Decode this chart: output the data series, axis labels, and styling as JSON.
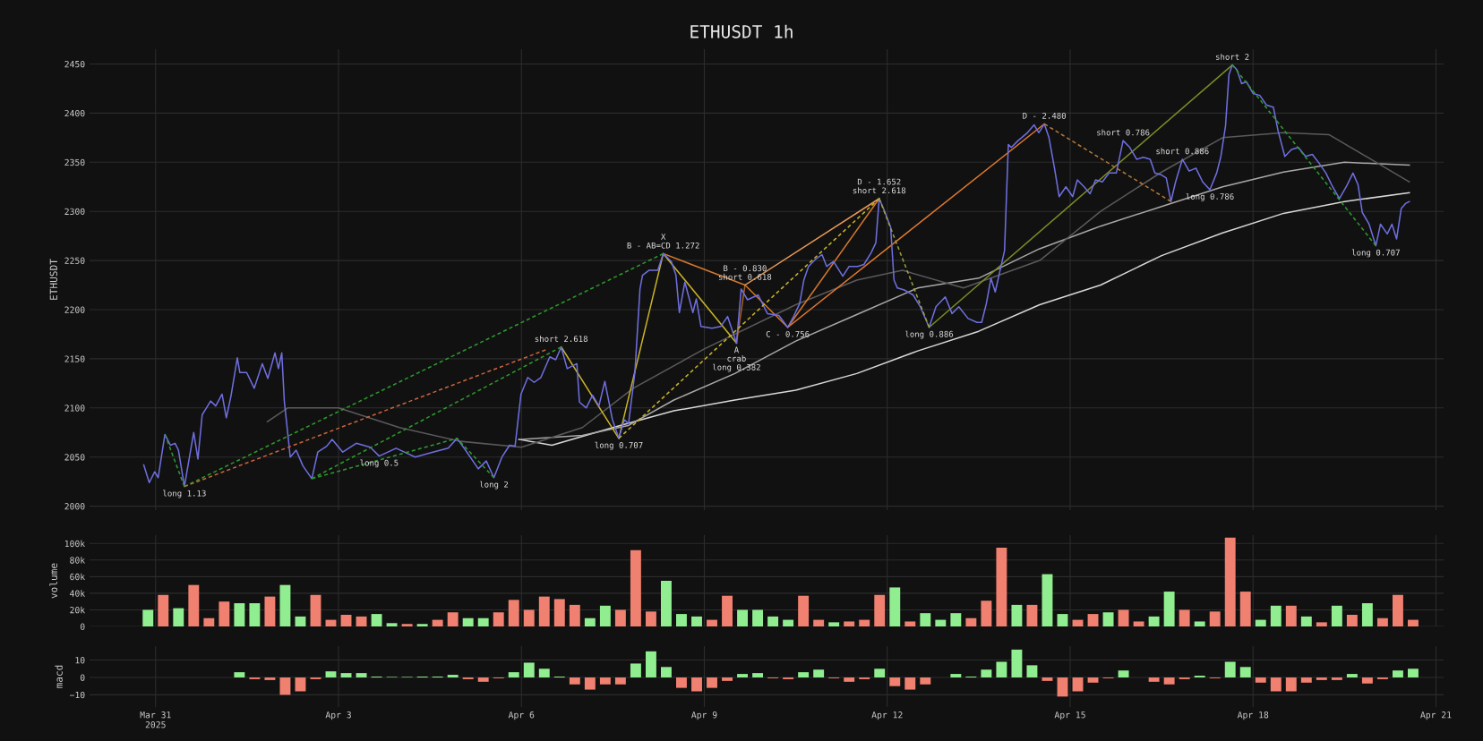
{
  "chart_data": [
    {
      "type": "line",
      "title": "ETHUSDT 1h",
      "ylabel": "ETHUSDT",
      "grid": true,
      "tick_labels": "y",
      "xlim": [
        "2025-03-29T22:00",
        "2025-04-21T03:00"
      ],
      "ylim": [
        1996,
        2465
      ],
      "yticks": [
        2000,
        2050,
        2100,
        2150,
        2200,
        2250,
        2300,
        2350,
        2400,
        2450
      ],
      "xticks": [
        {
          "value": "2025-03-31",
          "label": null
        },
        {
          "value": "2025-04-03",
          "label": null
        },
        {
          "value": "2025-04-06",
          "label": null
        },
        {
          "value": "2025-04-09",
          "label": null
        },
        {
          "value": "2025-04-12",
          "label": null
        },
        {
          "value": "2025-04-15",
          "label": null
        },
        {
          "value": "2025-04-18",
          "label": null
        },
        {
          "value": "2025-04-21",
          "label": null
        }
      ],
      "series": [
        {
          "type": "line",
          "color": "#d8d8d8",
          "line_style": "solid",
          "x": [
            "2025-04-05T23:00",
            "2025-04-06T12:00",
            "2025-04-07T12:00",
            "2025-04-08T12:00",
            "2025-04-09T12:00",
            "2025-04-10T12:00",
            "2025-04-11T12:00",
            "2025-04-12T12:00",
            "2025-04-13T12:00",
            "2025-04-14T12:00",
            "2025-04-15T12:00",
            "2025-04-16T12:00",
            "2025-04-17T12:00",
            "2025-04-18T12:00",
            "2025-04-19T12:00",
            "2025-04-20T13:30"
          ],
          "values": [
            2068,
            2062,
            2080,
            2097,
            2108,
            2118,
            2135,
            2158,
            2178,
            2205,
            2225,
            2255,
            2278,
            2298,
            2310,
            2319
          ]
        },
        {
          "type": "line",
          "color": "#a8a8a8",
          "line_style": "solid",
          "x": [
            "2025-04-06T00:00",
            "2025-04-07T00:00",
            "2025-04-07T18:00",
            "2025-04-08T12:00",
            "2025-04-09T12:00",
            "2025-04-10T12:00",
            "2025-04-11T12:00",
            "2025-04-12T12:00",
            "2025-04-13T12:00",
            "2025-04-14T12:00",
            "2025-04-15T12:00",
            "2025-04-16T12:00",
            "2025-04-17T12:00",
            "2025-04-18T12:00",
            "2025-04-19T12:00",
            "2025-04-20T13:30"
          ],
          "values": [
            2068,
            2072,
            2082,
            2108,
            2135,
            2168,
            2195,
            2222,
            2232,
            2262,
            2285,
            2305,
            2325,
            2340,
            2350,
            2347
          ]
        },
        {
          "type": "line",
          "color": "#5a5a5a",
          "line_style": "solid",
          "x": [
            "2025-04-01T20:00",
            "2025-04-02T04:00",
            "2025-04-03T00:00",
            "2025-04-04T00:00",
            "2025-04-05T00:00",
            "2025-04-06T00:00",
            "2025-04-07T00:00",
            "2025-04-07T20:00",
            "2025-04-09T00:00",
            "2025-04-10T12:00",
            "2025-04-11T12:00",
            "2025-04-12T06:00",
            "2025-04-13T06:00",
            "2025-04-14T12:00",
            "2025-04-15T12:00",
            "2025-04-16T12:00",
            "2025-04-17T12:00",
            "2025-04-18T12:00",
            "2025-04-19T06:00",
            "2025-04-20T13:30"
          ],
          "values": [
            2086,
            2100,
            2100,
            2080,
            2066,
            2060,
            2080,
            2120,
            2160,
            2205,
            2230,
            2240,
            2222,
            2250,
            2300,
            2340,
            2375,
            2380,
            2378,
            2330
          ]
        },
        {
          "type": "line",
          "color": "#2e9a2e",
          "line_style": "dashed",
          "x": [
            "2025-03-31T11:20",
            "2025-04-08T07:50"
          ],
          "values": [
            2020,
            2257
          ]
        },
        {
          "type": "line",
          "color": "#c8643c",
          "line_style": "dashed",
          "x": [
            "2025-03-31T11:20",
            "2025-04-06T09:30"
          ],
          "values": [
            2020,
            2159
          ]
        },
        {
          "type": "line",
          "color": "#2e9a2e",
          "line_style": "dashed",
          "x": [
            "2025-04-02T13:30",
            "2025-04-06T15:40"
          ],
          "values": [
            2028,
            2162
          ]
        },
        {
          "type": "line",
          "color": "#2e9a2e",
          "line_style": "dashed",
          "x": [
            "2025-03-31T03:40",
            "2025-03-31T11:20"
          ],
          "values": [
            2073,
            2020
          ]
        },
        {
          "type": "line",
          "color": "#2e9a2e",
          "line_style": "dashed",
          "x": [
            "2025-04-02T13:30",
            "2025-04-04T22:40",
            "2025-04-05T13:10"
          ],
          "values": [
            2028,
            2069,
            2029
          ]
        },
        {
          "type": "line",
          "color": "#c8b428",
          "line_style": "solid",
          "x": [
            "2025-04-06T15:40",
            "2025-04-07T14:20",
            "2025-04-08T07:50",
            "2025-04-09T12:40"
          ],
          "values": [
            2162,
            2069,
            2257,
            2166
          ]
        },
        {
          "type": "line",
          "color": "#d2782d",
          "line_style": "solid",
          "x": [
            "2025-04-08T07:50",
            "2025-04-09T16:00",
            "2025-04-10T08:50",
            "2025-04-11T20:50"
          ],
          "values": [
            2257,
            2225,
            2182,
            2313
          ]
        },
        {
          "type": "line",
          "color": "#a86020",
          "line_style": "solid",
          "x": [
            "2025-04-09T12:40",
            "2025-04-09T16:00"
          ],
          "values": [
            2166,
            2225
          ]
        },
        {
          "type": "line",
          "color": "#e89a58",
          "line_style": "solid",
          "x": [
            "2025-04-09T16:00",
            "2025-04-11T20:50"
          ],
          "values": [
            2225,
            2313
          ]
        },
        {
          "type": "line",
          "color": "#c8b428",
          "line_style": "dashed",
          "x": [
            "2025-04-07T14:20",
            "2025-04-11T20:50"
          ],
          "values": [
            2069,
            2313
          ]
        },
        {
          "type": "line",
          "color": "#e07a30",
          "line_style": "solid",
          "x": [
            "2025-04-10T08:50",
            "2025-04-14T13:50"
          ],
          "values": [
            2182,
            2389
          ]
        },
        {
          "type": "line",
          "color": "#9aa03c",
          "line_style": "dashed",
          "x": [
            "2025-04-11T20:50",
            "2025-04-12T16:30"
          ],
          "values": [
            2313,
            2182
          ]
        },
        {
          "type": "line",
          "color": "#7a8c28",
          "line_style": "solid",
          "x": [
            "2025-04-12T16:30",
            "2025-04-17T15:50"
          ],
          "values": [
            2182,
            2449
          ]
        },
        {
          "type": "line",
          "color": "#b4783c",
          "line_style": "dashed",
          "x": [
            "2025-04-14T13:50",
            "2025-04-16T15:40"
          ],
          "values": [
            2389,
            2310
          ]
        },
        {
          "type": "line",
          "color": "#2e9a2e",
          "line_style": "dashed",
          "x": [
            "2025-04-17T15:50",
            "2025-04-20T00:20"
          ],
          "values": [
            2449,
            2265
          ]
        },
        {
          "type": "line",
          "color": "#6f6fe0",
          "line_style": "solid",
          "x": [
            "2025-03-30T19:20",
            "2025-03-30T21:30",
            "2025-03-30T23:40",
            "2025-03-31T01:00",
            "2025-03-31T03:40",
            "2025-03-31T05:50",
            "2025-03-31T07:40",
            "2025-03-31T09:00",
            "2025-03-31T11:20",
            "2025-03-31T13:20",
            "2025-03-31T15:00",
            "2025-03-31T16:40",
            "2025-03-31T18:20",
            "2025-03-31T20:00",
            "2025-03-31T21:40",
            "2025-03-31T23:40",
            "2025-04-01T02:10",
            "2025-04-01T03:50",
            "2025-04-01T05:40",
            "2025-04-01T08:10",
            "2025-04-01T09:10",
            "2025-04-01T11:50",
            "2025-04-01T14:50",
            "2025-04-01T18:00",
            "2025-04-01T20:10",
            "2025-04-01T23:00",
            "2025-04-02T00:20",
            "2025-04-02T01:40",
            "2025-04-02T02:40",
            "2025-04-02T05:00",
            "2025-04-02T07:20",
            "2025-04-02T10:00",
            "2025-04-02T13:30",
            "2025-04-02T15:50",
            "2025-04-02T19:20",
            "2025-04-02T21:30",
            "2025-04-03T01:40",
            "2025-04-03T07:00",
            "2025-04-03T12:30",
            "2025-04-03T16:00",
            "2025-04-03T22:40",
            "2025-04-04T06:10",
            "2025-04-04T13:10",
            "2025-04-04T19:10",
            "2025-04-04T22:40",
            "2025-04-05T02:00",
            "2025-04-05T07:00",
            "2025-04-05T10:10",
            "2025-04-05T13:10",
            "2025-04-05T16:20",
            "2025-04-05T19:20",
            "2025-04-05T21:30",
            "2025-04-05T23:50",
            "2025-04-06T02:30",
            "2025-04-06T05:00",
            "2025-04-06T07:40",
            "2025-04-06T11:10",
            "2025-04-06T13:30",
            "2025-04-06T15:40",
            "2025-04-06T18:00",
            "2025-04-06T21:50",
            "2025-04-06T22:50",
            "2025-04-07T01:30",
            "2025-04-07T04:00",
            "2025-04-07T06:30",
            "2025-04-07T08:50",
            "2025-04-07T11:50",
            "2025-04-07T14:20",
            "2025-04-07T16:30",
            "2025-04-07T18:10",
            "2025-04-07T20:40",
            "2025-04-07T22:40",
            "2025-04-07T23:40",
            "2025-04-08T02:10",
            "2025-04-08T05:40",
            "2025-04-08T07:50",
            "2025-04-08T11:00",
            "2025-04-08T12:50",
            "2025-04-08T14:10",
            "2025-04-08T16:20",
            "2025-04-08T19:30",
            "2025-04-08T20:50",
            "2025-04-08T22:40",
            "2025-04-09T03:00",
            "2025-04-09T06:30",
            "2025-04-09T09:10",
            "2025-04-09T12:40",
            "2025-04-09T14:30",
            "2025-04-09T17:00",
            "2025-04-09T21:10",
            "2025-04-10T00:50",
            "2025-04-10T05:20",
            "2025-04-10T08:50",
            "2025-04-10T11:20",
            "2025-04-10T13:30",
            "2025-04-10T15:10",
            "2025-04-10T17:00",
            "2025-04-10T19:40",
            "2025-04-10T22:20",
            "2025-04-11T00:10",
            "2025-04-11T02:50",
            "2025-04-11T06:30",
            "2025-04-11T09:00",
            "2025-04-11T12:20",
            "2025-04-11T14:50",
            "2025-04-11T17:40",
            "2025-04-11T19:30",
            "2025-04-11T20:50",
            "2025-04-11T22:30",
            "2025-04-12T01:20",
            "2025-04-12T02:40",
            "2025-04-12T04:00",
            "2025-04-12T06:40",
            "2025-04-12T10:10",
            "2025-04-12T13:00",
            "2025-04-12T16:30",
            "2025-04-12T19:10",
            "2025-04-12T22:50",
            "2025-04-13T01:30",
            "2025-04-13T04:10",
            "2025-04-13T07:50",
            "2025-04-13T11:20",
            "2025-04-13T13:10",
            "2025-04-13T15:00",
            "2025-04-13T16:50",
            "2025-04-13T18:30",
            "2025-04-13T20:20",
            "2025-04-13T22:10",
            "2025-04-13T23:40",
            "2025-04-14T00:50",
            "2025-04-14T03:30",
            "2025-04-14T07:10",
            "2025-04-14T09:50",
            "2025-04-14T11:40",
            "2025-04-14T13:50",
            "2025-04-14T15:40",
            "2025-04-14T17:50",
            "2025-04-14T19:40",
            "2025-04-14T22:20",
            "2025-04-15T01:00",
            "2025-04-15T02:50",
            "2025-04-15T05:30",
            "2025-04-15T07:50",
            "2025-04-15T10:00",
            "2025-04-15T12:40",
            "2025-04-15T15:20",
            "2025-04-15T18:10",
            "2025-04-15T20:50",
            "2025-04-15T23:30",
            "2025-04-16T02:10",
            "2025-04-16T04:50",
            "2025-04-16T07:30",
            "2025-04-16T09:20",
            "2025-04-16T12:00",
            "2025-04-16T13:50",
            "2025-04-16T15:40",
            "2025-04-16T17:30",
            "2025-04-16T20:10",
            "2025-04-16T22:50",
            "2025-04-17T01:30",
            "2025-04-17T04:10",
            "2025-04-17T07:00",
            "2025-04-17T09:40",
            "2025-04-17T11:20",
            "2025-04-17T13:10",
            "2025-04-17T14:30",
            "2025-04-17T15:50",
            "2025-04-17T17:40",
            "2025-04-17T19:30",
            "2025-04-17T21:20",
            "2025-04-18T00:00",
            "2025-04-18T02:40",
            "2025-04-18T05:20",
            "2025-04-18T08:00",
            "2025-04-18T09:50",
            "2025-04-18T12:30",
            "2025-04-18T15:10",
            "2025-04-18T17:50",
            "2025-04-18T20:40",
            "2025-04-18T23:20",
            "2025-04-19T02:00",
            "2025-04-19T04:40",
            "2025-04-19T07:20",
            "2025-04-19T10:00",
            "2025-04-19T12:40",
            "2025-04-19T15:20",
            "2025-04-19T17:20",
            "2025-04-19T19:00",
            "2025-04-19T21:40",
            "2025-04-20T00:20",
            "2025-04-20T02:10",
            "2025-04-20T04:50",
            "2025-04-20T06:40",
            "2025-04-20T08:30",
            "2025-04-20T10:20",
            "2025-04-20T12:00",
            "2025-04-20T13:30"
          ],
          "values": [
            2042,
            2024,
            2035,
            2029,
            2073,
            2062,
            2064,
            2057,
            2020,
            2050,
            2075,
            2048,
            2093,
            2100,
            2107,
            2102,
            2114,
            2090,
            2112,
            2151,
            2136,
            2136,
            2120,
            2145,
            2130,
            2156,
            2140,
            2156,
            2107,
            2050,
            2057,
            2041,
            2028,
            2055,
            2061,
            2068,
            2055,
            2064,
            2060,
            2051,
            2059,
            2050,
            2055,
            2059,
            2069,
            2057,
            2038,
            2046,
            2029,
            2050,
            2062,
            2061,
            2114,
            2131,
            2126,
            2131,
            2152,
            2149,
            2162,
            2140,
            2145,
            2106,
            2100,
            2113,
            2102,
            2127,
            2088,
            2069,
            2088,
            2084,
            2136,
            2221,
            2235,
            2240,
            2240,
            2257,
            2249,
            2235,
            2197,
            2228,
            2197,
            2211,
            2183,
            2181,
            2183,
            2193,
            2166,
            2221,
            2210,
            2215,
            2196,
            2194,
            2182,
            2194,
            2206,
            2230,
            2244,
            2251,
            2256,
            2244,
            2249,
            2234,
            2244,
            2244,
            2246,
            2258,
            2268,
            2313,
            2303,
            2284,
            2230,
            2222,
            2220,
            2215,
            2203,
            2182,
            2203,
            2213,
            2196,
            2203,
            2191,
            2187,
            2187,
            2206,
            2232,
            2218,
            2239,
            2260,
            2368,
            2365,
            2372,
            2380,
            2388,
            2380,
            2389,
            2375,
            2344,
            2315,
            2325,
            2315,
            2332,
            2325,
            2318,
            2332,
            2330,
            2339,
            2339,
            2372,
            2365,
            2353,
            2355,
            2353,
            2339,
            2337,
            2334,
            2310,
            2330,
            2353,
            2341,
            2344,
            2330,
            2322,
            2339,
            2356,
            2387,
            2439,
            2449,
            2444,
            2430,
            2432,
            2420,
            2418,
            2408,
            2406,
            2382,
            2356,
            2363,
            2365,
            2356,
            2358,
            2349,
            2339,
            2325,
            2313,
            2325,
            2339,
            2327,
            2299,
            2287,
            2265,
            2287,
            2277,
            2287,
            2272,
            2303,
            2308,
            2310
          ]
        }
      ],
      "annotations": [
        {
          "text": "long 1.13",
          "x": "2025-03-31T11:20",
          "y": 2020
        },
        {
          "text": "long 0.5",
          "x": "2025-04-03T16:00",
          "y": 2051
        },
        {
          "text": "long 2",
          "x": "2025-04-05T13:10",
          "y": 2029
        },
        {
          "text": "short 2.618",
          "x": "2025-04-06T15:40",
          "y": 2162
        },
        {
          "text": "long 0.707",
          "x": "2025-04-07T14:20",
          "y": 2069
        },
        {
          "text": "B - AB=CD 1.272",
          "x": "2025-04-08T07:50",
          "y": 2257
        },
        {
          "text": "X",
          "x": "2025-04-08T07:50",
          "y": 2257
        },
        {
          "text": "short 0.618",
          "x": "2025-04-09T16:00",
          "y": 2225
        },
        {
          "text": "B - 0.830",
          "x": "2025-04-09T16:00",
          "y": 2225
        },
        {
          "text": "A",
          "x": "2025-04-09T12:40",
          "y": 2166
        },
        {
          "text": "crab",
          "x": "2025-04-09T12:40",
          "y": 2166
        },
        {
          "text": "long 0.382",
          "x": "2025-04-09T12:40",
          "y": 2166
        },
        {
          "text": "C - 0.756",
          "x": "2025-04-10T08:50",
          "y": 2182
        },
        {
          "text": "short 2.618",
          "x": "2025-04-11T20:50",
          "y": 2313
        },
        {
          "text": "D - 1.652",
          "x": "2025-04-11T20:50",
          "y": 2313
        },
        {
          "text": "long 0.886",
          "x": "2025-04-12T16:30",
          "y": 2182
        },
        {
          "text": "D - 2.480",
          "x": "2025-04-14T13:50",
          "y": 2389
        },
        {
          "text": "short 0.786",
          "x": "2025-04-15T20:50",
          "y": 2372
        },
        {
          "text": "short 0.886",
          "x": "2025-04-16T20:10",
          "y": 2353
        },
        {
          "text": "long 0.786",
          "x": "2025-04-17T07:00",
          "y": 2322
        },
        {
          "text": "short 2",
          "x": "2025-04-17T15:50",
          "y": 2449
        },
        {
          "text": "long 0.707",
          "x": "2025-04-20T00:20",
          "y": 2265
        }
      ]
    },
    {
      "type": "bar",
      "ylabel": "volume",
      "grid": true,
      "tick_labels": "y",
      "xlim": [
        "2025-03-29T22:00",
        "2025-04-21T03:00"
      ],
      "ylim": [
        0,
        110000
      ],
      "yticks": [
        0,
        {
          "value": 20000,
          "label": "20k"
        },
        {
          "value": 40000,
          "label": "40k"
        },
        {
          "value": 60000,
          "label": "60k"
        },
        {
          "value": 80000,
          "label": "80k"
        },
        {
          "value": 100000,
          "label": "100k"
        }
      ],
      "xticks": [
        {
          "value": "2025-03-31",
          "label": null
        },
        {
          "value": "2025-04-03",
          "label": null
        },
        {
          "value": "2025-04-06",
          "label": null
        },
        {
          "value": "2025-04-09",
          "label": null
        },
        {
          "value": "2025-04-12",
          "label": null
        },
        {
          "value": "2025-04-15",
          "label": null
        },
        {
          "value": "2025-04-18",
          "label": null
        },
        {
          "value": "2025-04-21",
          "label": null
        }
      ],
      "x": [
        "2025-03-30T21:00",
        "2025-03-31T03:00",
        "2025-03-31T09:00",
        "2025-03-31T15:00",
        "2025-03-31T21:00",
        "2025-04-01T03:00",
        "2025-04-01T09:00",
        "2025-04-01T15:00",
        "2025-04-01T21:00",
        "2025-04-02T03:00",
        "2025-04-02T09:00",
        "2025-04-02T15:00",
        "2025-04-02T21:00",
        "2025-04-03T03:00",
        "2025-04-03T09:00",
        "2025-04-03T15:00",
        "2025-04-03T21:00",
        "2025-04-04T03:00",
        "2025-04-04T09:00",
        "2025-04-04T15:00",
        "2025-04-04T21:00",
        "2025-04-05T03:00",
        "2025-04-05T09:00",
        "2025-04-05T15:00",
        "2025-04-05T21:00",
        "2025-04-06T03:00",
        "2025-04-06T09:00",
        "2025-04-06T15:00",
        "2025-04-06T21:00",
        "2025-04-07T03:00",
        "2025-04-07T09:00",
        "2025-04-07T15:00",
        "2025-04-07T21:00",
        "2025-04-08T03:00",
        "2025-04-08T09:00",
        "2025-04-08T15:00",
        "2025-04-08T21:00",
        "2025-04-09T03:00",
        "2025-04-09T09:00",
        "2025-04-09T15:00",
        "2025-04-09T21:00",
        "2025-04-10T03:00",
        "2025-04-10T09:00",
        "2025-04-10T15:00",
        "2025-04-10T21:00",
        "2025-04-11T03:00",
        "2025-04-11T09:00",
        "2025-04-11T15:00",
        "2025-04-11T21:00",
        "2025-04-12T03:00",
        "2025-04-12T09:00",
        "2025-04-12T15:00",
        "2025-04-12T21:00",
        "2025-04-13T03:00",
        "2025-04-13T09:00",
        "2025-04-13T15:00",
        "2025-04-13T21:00",
        "2025-04-14T03:00",
        "2025-04-14T09:00",
        "2025-04-14T15:00",
        "2025-04-14T21:00",
        "2025-04-15T03:00",
        "2025-04-15T09:00",
        "2025-04-15T15:00",
        "2025-04-15T21:00",
        "2025-04-16T03:00",
        "2025-04-16T09:00",
        "2025-04-16T15:00",
        "2025-04-16T21:00",
        "2025-04-17T03:00",
        "2025-04-17T09:00",
        "2025-04-17T15:00",
        "2025-04-17T21:00",
        "2025-04-18T03:00",
        "2025-04-18T09:00",
        "2025-04-18T15:00",
        "2025-04-18T21:00",
        "2025-04-19T03:00",
        "2025-04-19T09:00",
        "2025-04-19T15:00",
        "2025-04-19T21:00",
        "2025-04-20T03:00",
        "2025-04-20T09:00",
        "2025-04-20T15:00"
      ],
      "values": [
        20000,
        38000,
        22000,
        50000,
        10000,
        30000,
        28000,
        28000,
        36000,
        50000,
        12000,
        38000,
        8000,
        14000,
        12000,
        15000,
        4000,
        3000,
        3000,
        8000,
        17000,
        10000,
        10000,
        17000,
        32000,
        20000,
        36000,
        33000,
        26000,
        10000,
        25000,
        20000,
        92000,
        18000,
        55000,
        15000,
        12000,
        8000,
        37000,
        20000,
        20000,
        12000,
        8000,
        37000,
        8000,
        5000,
        6000,
        8000,
        38000,
        47000,
        6000,
        16000,
        8000,
        16000,
        10000,
        31000,
        95000,
        26000,
        26000,
        63000,
        15000,
        8000,
        15000,
        17000,
        20000,
        6000,
        12000,
        42000,
        20000,
        6000,
        18000,
        107000,
        42000,
        8000,
        25000,
        25000,
        12000,
        5000,
        25000,
        14000,
        28000,
        10000,
        38000,
        8000
      ],
      "colors": [
        "#90ee90",
        "#f08070",
        "#90ee90",
        "#f08070",
        "#f08070",
        "#f08070",
        "#90ee90",
        "#90ee90",
        "#f08070",
        "#90ee90",
        "#90ee90",
        "#f08070",
        "#f08070",
        "#f08070",
        "#f08070",
        "#90ee90",
        "#90ee90",
        "#f08070",
        "#90ee90",
        "#f08070",
        "#f08070",
        "#90ee90",
        "#90ee90",
        "#f08070",
        "#f08070",
        "#f08070",
        "#f08070",
        "#f08070",
        "#f08070",
        "#90ee90",
        "#90ee90",
        "#f08070",
        "#f08070",
        "#f08070",
        "#90ee90",
        "#90ee90",
        "#90ee90",
        "#f08070",
        "#f08070",
        "#90ee90",
        "#90ee90",
        "#90ee90",
        "#90ee90",
        "#f08070",
        "#f08070",
        "#90ee90",
        "#f08070",
        "#f08070",
        "#f08070",
        "#90ee90",
        "#f08070",
        "#90ee90",
        "#90ee90",
        "#90ee90",
        "#f08070",
        "#f08070",
        "#f08070",
        "#90ee90",
        "#f08070",
        "#90ee90",
        "#90ee90",
        "#f08070",
        "#f08070",
        "#90ee90",
        "#f08070",
        "#f08070",
        "#90ee90",
        "#90ee90",
        "#f08070",
        "#90ee90",
        "#f08070",
        "#f08070",
        "#f08070",
        "#90ee90",
        "#90ee90",
        "#f08070",
        "#90ee90",
        "#f08070",
        "#90ee90",
        "#f08070",
        "#90ee90",
        "#f08070",
        "#f08070",
        "#f08070"
      ]
    },
    {
      "type": "bar",
      "ylabel": "macd",
      "grid": true,
      "xlim": [
        "2025-03-29T22:00",
        "2025-04-21T03:00"
      ],
      "ylim": [
        -17,
        18
      ],
      "yticks": [
        {
          "value": -10,
          "label": "−10"
        },
        0,
        10
      ],
      "xticks": [
        {
          "value": "2025-03-31",
          "label": "Mar 31\n2025"
        },
        {
          "value": "2025-04-03",
          "label": "Apr 3"
        },
        {
          "value": "2025-04-06",
          "label": "Apr 6"
        },
        {
          "value": "2025-04-09",
          "label": "Apr 9"
        },
        {
          "value": "2025-04-12",
          "label": "Apr 12"
        },
        {
          "value": "2025-04-15",
          "label": "Apr 15"
        },
        {
          "value": "2025-04-18",
          "label": "Apr 18"
        },
        {
          "value": "2025-04-21",
          "label": "Apr 21"
        }
      ],
      "x": [
        "2025-04-01T09:00",
        "2025-04-01T15:00",
        "2025-04-01T21:00",
        "2025-04-02T03:00",
        "2025-04-02T09:00",
        "2025-04-02T15:00",
        "2025-04-02T21:00",
        "2025-04-03T03:00",
        "2025-04-03T09:00",
        "2025-04-03T15:00",
        "2025-04-03T21:00",
        "2025-04-04T03:00",
        "2025-04-04T09:00",
        "2025-04-04T15:00",
        "2025-04-04T21:00",
        "2025-04-05T03:00",
        "2025-04-05T09:00",
        "2025-04-05T15:00",
        "2025-04-05T21:00",
        "2025-04-06T03:00",
        "2025-04-06T09:00",
        "2025-04-06T15:00",
        "2025-04-06T21:00",
        "2025-04-07T03:00",
        "2025-04-07T09:00",
        "2025-04-07T15:00",
        "2025-04-07T21:00",
        "2025-04-08T03:00",
        "2025-04-08T09:00",
        "2025-04-08T15:00",
        "2025-04-08T21:00",
        "2025-04-09T03:00",
        "2025-04-09T09:00",
        "2025-04-09T15:00",
        "2025-04-09T21:00",
        "2025-04-10T03:00",
        "2025-04-10T09:00",
        "2025-04-10T15:00",
        "2025-04-10T21:00",
        "2025-04-11T03:00",
        "2025-04-11T09:00",
        "2025-04-11T15:00",
        "2025-04-11T21:00",
        "2025-04-12T03:00",
        "2025-04-12T09:00",
        "2025-04-12T15:00",
        "2025-04-12T21:00",
        "2025-04-13T03:00",
        "2025-04-13T09:00",
        "2025-04-13T15:00",
        "2025-04-13T21:00",
        "2025-04-14T03:00",
        "2025-04-14T09:00",
        "2025-04-14T15:00",
        "2025-04-14T21:00",
        "2025-04-15T03:00",
        "2025-04-15T09:00",
        "2025-04-15T15:00",
        "2025-04-15T21:00",
        "2025-04-16T03:00",
        "2025-04-16T09:00",
        "2025-04-16T15:00",
        "2025-04-16T21:00",
        "2025-04-17T03:00",
        "2025-04-17T09:00",
        "2025-04-17T15:00",
        "2025-04-17T21:00",
        "2025-04-18T03:00",
        "2025-04-18T09:00",
        "2025-04-18T15:00",
        "2025-04-18T21:00",
        "2025-04-19T03:00",
        "2025-04-19T09:00",
        "2025-04-19T15:00",
        "2025-04-19T21:00",
        "2025-04-20T03:00",
        "2025-04-20T09:00",
        "2025-04-20T15:00"
      ],
      "values": [
        3,
        -1,
        -1.5,
        -10,
        -8,
        -1,
        3.5,
        2.5,
        2.5,
        0.5,
        0.3,
        0.3,
        0.5,
        0.5,
        1.5,
        -1,
        -2.5,
        -0.5,
        3,
        8.5,
        5,
        0.5,
        -4,
        -7,
        -4,
        -4,
        8,
        15,
        6,
        -6,
        -8,
        -6,
        -2,
        2,
        2.5,
        -0.5,
        -1,
        3,
        4.5,
        -0.5,
        -2.5,
        -1,
        5,
        -5,
        -7,
        -4,
        null,
        2,
        0.5,
        4.5,
        9,
        16,
        7,
        -2,
        -11,
        -8,
        -3,
        -0.5,
        4,
        null,
        -2.5,
        -4,
        -1,
        1,
        -0.5,
        9,
        6,
        -3,
        -8,
        -8,
        -3,
        -1.5,
        -1.5,
        2,
        -3.5,
        -1,
        4,
        5
      ],
      "colors": [
        "#90ee90",
        "#f08070",
        "#f08070",
        "#f08070",
        "#f08070",
        "#f08070",
        "#90ee90",
        "#90ee90",
        "#90ee90",
        "#90ee90",
        "#90ee90",
        "#90ee90",
        "#90ee90",
        "#90ee90",
        "#90ee90",
        "#f08070",
        "#f08070",
        "#f08070",
        "#90ee90",
        "#90ee90",
        "#90ee90",
        "#90ee90",
        "#f08070",
        "#f08070",
        "#f08070",
        "#f08070",
        "#90ee90",
        "#90ee90",
        "#90ee90",
        "#f08070",
        "#f08070",
        "#f08070",
        "#f08070",
        "#90ee90",
        "#90ee90",
        "#f08070",
        "#f08070",
        "#90ee90",
        "#90ee90",
        "#f08070",
        "#f08070",
        "#f08070",
        "#90ee90",
        "#f08070",
        "#f08070",
        "#f08070",
        "#90ee90",
        "#90ee90",
        "#90ee90",
        "#90ee90",
        "#90ee90",
        "#90ee90",
        "#90ee90",
        "#f08070",
        "#f08070",
        "#f08070",
        "#f08070",
        "#f08070",
        "#90ee90",
        "#90ee90",
        "#f08070",
        "#f08070",
        "#f08070",
        "#90ee90",
        "#f08070",
        "#90ee90",
        "#90ee90",
        "#f08070",
        "#f08070",
        "#f08070",
        "#f08070",
        "#f08070",
        "#f08070",
        "#90ee90",
        "#f08070",
        "#f08070",
        "#90ee90",
        "#90ee90"
      ]
    }
  ]
}
